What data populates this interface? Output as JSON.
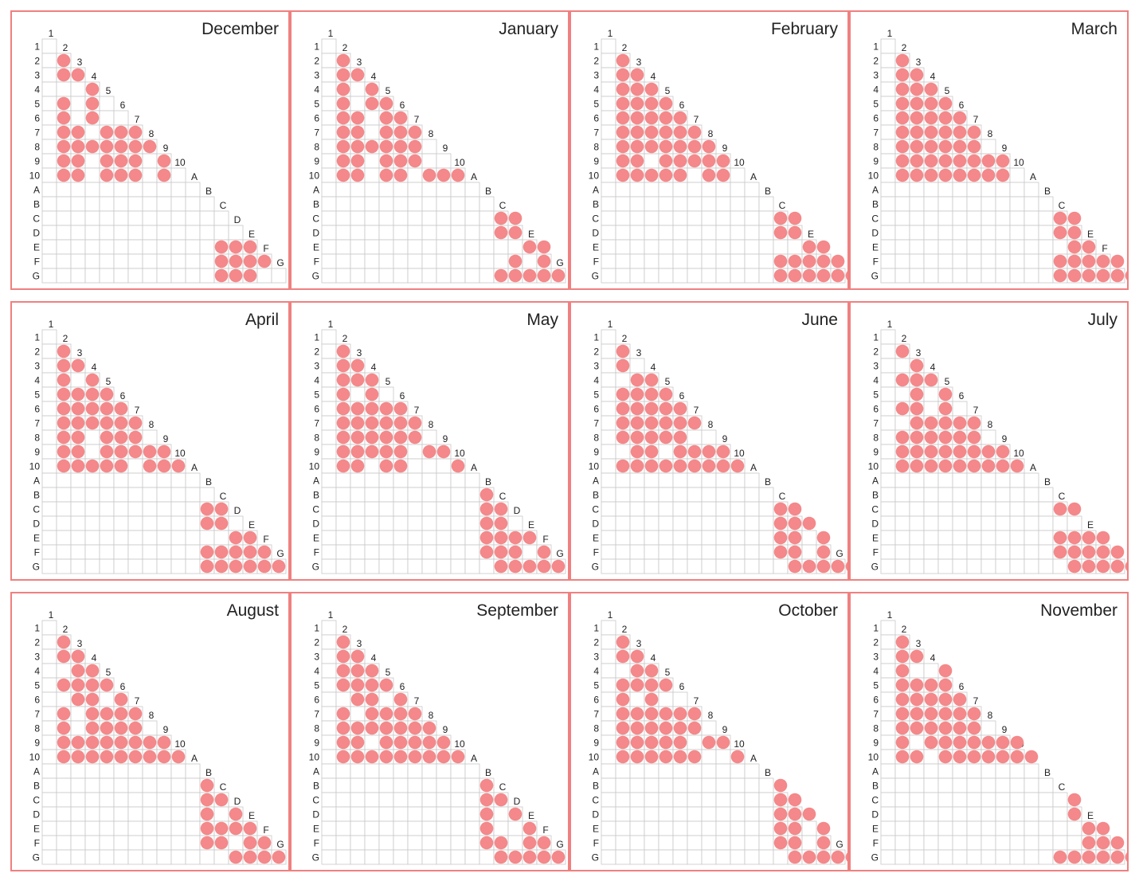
{
  "chart_data": {
    "type": "heatmap",
    "labels": [
      "1",
      "2",
      "3",
      "4",
      "5",
      "6",
      "7",
      "8",
      "9",
      "10",
      "A",
      "B",
      "C",
      "D",
      "E",
      "F",
      "G"
    ],
    "marker_color": "#f4888a",
    "border_color": "#f08080",
    "grid_color": "#c8c8c8",
    "panels": [
      {
        "title": "December",
        "rows": [
          [],
          [
            1
          ],
          [
            1,
            2
          ],
          [
            3
          ],
          [
            1,
            3
          ],
          [
            1,
            3
          ],
          [
            1,
            2,
            4,
            5,
            6
          ],
          [
            1,
            2,
            3,
            4,
            5,
            6,
            7
          ],
          [
            1,
            2,
            4,
            5,
            6,
            8
          ],
          [
            1,
            2,
            4,
            5,
            6,
            8
          ],
          [],
          [],
          [],
          [],
          [
            12,
            13,
            14
          ],
          [
            12,
            13,
            14,
            15
          ],
          [
            12,
            13,
            14
          ]
        ]
      },
      {
        "title": "January",
        "rows": [
          [],
          [
            1
          ],
          [
            1,
            2
          ],
          [
            1,
            3
          ],
          [
            1,
            3,
            4
          ],
          [
            1,
            2,
            4,
            5
          ],
          [
            1,
            2,
            4,
            5,
            6
          ],
          [
            1,
            2,
            3,
            4,
            5,
            6
          ],
          [
            1,
            2,
            4,
            5,
            6
          ],
          [
            1,
            2,
            4,
            5,
            7,
            8,
            9
          ],
          [],
          [],
          [
            12,
            13
          ],
          [
            12,
            13
          ],
          [
            14,
            15
          ],
          [
            13,
            15
          ],
          [
            12,
            13,
            14,
            15,
            16
          ]
        ]
      },
      {
        "title": "February",
        "rows": [
          [],
          [
            1
          ],
          [
            1,
            2
          ],
          [
            1,
            2,
            3
          ],
          [
            1,
            2,
            3,
            4
          ],
          [
            1,
            2,
            3,
            4,
            5
          ],
          [
            1,
            2,
            3,
            4,
            5,
            6
          ],
          [
            1,
            2,
            3,
            4,
            5,
            6,
            7
          ],
          [
            1,
            2,
            4,
            5,
            6,
            7,
            8
          ],
          [
            1,
            2,
            3,
            4,
            5,
            7,
            8
          ],
          [],
          [],
          [
            12,
            13
          ],
          [
            12,
            13
          ],
          [
            14,
            15
          ],
          [
            12,
            13,
            14,
            15,
            16
          ],
          [
            12,
            13,
            14,
            15,
            16,
            17
          ]
        ]
      },
      {
        "title": "March",
        "rows": [
          [],
          [
            1
          ],
          [
            1,
            2
          ],
          [
            1,
            2,
            3
          ],
          [
            1,
            2,
            3,
            4
          ],
          [
            1,
            2,
            3,
            4,
            5
          ],
          [
            1,
            2,
            3,
            4,
            5,
            6
          ],
          [
            1,
            2,
            3,
            4,
            5,
            6
          ],
          [
            1,
            2,
            3,
            4,
            5,
            6,
            7,
            8
          ],
          [
            1,
            2,
            3,
            4,
            5,
            6,
            7,
            8
          ],
          [],
          [],
          [
            12,
            13
          ],
          [
            12,
            13
          ],
          [
            13,
            14
          ],
          [
            12,
            13,
            14,
            15,
            16
          ],
          [
            12,
            13,
            14,
            15,
            16,
            17
          ]
        ]
      },
      {
        "title": "April",
        "rows": [
          [],
          [
            1
          ],
          [
            1,
            2
          ],
          [
            1,
            3
          ],
          [
            1,
            2,
            3,
            4
          ],
          [
            1,
            2,
            3,
            4,
            5
          ],
          [
            1,
            2,
            3,
            4,
            5,
            6
          ],
          [
            1,
            2,
            4,
            5,
            6
          ],
          [
            1,
            2,
            4,
            5,
            6,
            7,
            8
          ],
          [
            1,
            2,
            3,
            4,
            5,
            7,
            8,
            9
          ],
          [],
          [],
          [
            11,
            12
          ],
          [
            11,
            12
          ],
          [
            13,
            14
          ],
          [
            11,
            12,
            13,
            14,
            15
          ],
          [
            11,
            12,
            13,
            14,
            15,
            16
          ]
        ]
      },
      {
        "title": "May",
        "rows": [
          [],
          [
            1
          ],
          [
            1,
            2
          ],
          [
            1,
            2,
            3
          ],
          [
            1,
            3
          ],
          [
            1,
            2,
            3,
            4,
            5
          ],
          [
            1,
            2,
            3,
            4,
            5,
            6
          ],
          [
            1,
            2,
            3,
            4,
            5,
            6
          ],
          [
            1,
            2,
            3,
            4,
            5,
            7,
            8
          ],
          [
            1,
            2,
            4,
            5,
            9
          ],
          [],
          [
            11
          ],
          [
            11,
            12
          ],
          [
            11,
            12
          ],
          [
            11,
            12,
            13,
            14
          ],
          [
            11,
            12,
            13,
            15
          ],
          [
            12,
            13,
            14,
            15,
            16
          ]
        ]
      },
      {
        "title": "June",
        "rows": [
          [],
          [
            1
          ],
          [
            1
          ],
          [
            2,
            3
          ],
          [
            1,
            2,
            3,
            4
          ],
          [
            1,
            2,
            3,
            4,
            5
          ],
          [
            1,
            2,
            3,
            4,
            5,
            6
          ],
          [
            1,
            2,
            3,
            4,
            5
          ],
          [
            2,
            3,
            5,
            6,
            7,
            8
          ],
          [
            1,
            2,
            3,
            4,
            5,
            6,
            7,
            8,
            9
          ],
          [],
          [],
          [
            12,
            13
          ],
          [
            12,
            13,
            14
          ],
          [
            12,
            13,
            15
          ],
          [
            12,
            13,
            15
          ],
          [
            13,
            14,
            15,
            16,
            17
          ]
        ]
      },
      {
        "title": "July",
        "rows": [
          [],
          [
            1
          ],
          [
            2
          ],
          [
            1,
            2,
            3
          ],
          [
            2,
            4
          ],
          [
            1,
            2,
            4
          ],
          [
            2,
            3,
            4,
            5,
            6
          ],
          [
            1,
            2,
            3,
            4,
            5,
            6
          ],
          [
            1,
            2,
            3,
            4,
            5,
            6,
            7,
            8
          ],
          [
            1,
            2,
            3,
            4,
            5,
            6,
            7,
            8,
            9
          ],
          [],
          [],
          [
            12,
            13
          ],
          [],
          [
            12,
            13,
            14,
            15
          ],
          [
            12,
            13,
            14,
            15,
            16
          ],
          [
            13,
            14,
            15,
            16,
            17
          ]
        ]
      },
      {
        "title": "August",
        "rows": [
          [],
          [
            1
          ],
          [
            1,
            2
          ],
          [
            2,
            3
          ],
          [
            1,
            2,
            3,
            4
          ],
          [
            2,
            3,
            5
          ],
          [
            1,
            3,
            4,
            5,
            6
          ],
          [
            1,
            3,
            4,
            5,
            6
          ],
          [
            1,
            2,
            3,
            4,
            5,
            6,
            7,
            8
          ],
          [
            1,
            2,
            3,
            4,
            5,
            6,
            7,
            8,
            9
          ],
          [],
          [
            11
          ],
          [
            11,
            12
          ],
          [
            11,
            13
          ],
          [
            11,
            12,
            13,
            14
          ],
          [
            11,
            12,
            14,
            15
          ],
          [
            13,
            14,
            15,
            16
          ]
        ]
      },
      {
        "title": "September",
        "rows": [
          [],
          [
            1
          ],
          [
            1,
            2
          ],
          [
            1,
            2,
            3
          ],
          [
            1,
            2,
            3,
            4
          ],
          [
            2,
            3,
            5
          ],
          [
            1,
            3,
            4,
            5,
            6
          ],
          [
            1,
            2,
            3,
            4,
            5,
            6,
            7
          ],
          [
            1,
            2,
            4,
            5,
            6,
            7,
            8
          ],
          [
            1,
            2,
            3,
            4,
            5,
            6,
            7,
            8,
            9
          ],
          [],
          [
            11
          ],
          [
            11,
            12
          ],
          [
            11,
            13
          ],
          [
            11,
            14
          ],
          [
            11,
            12,
            14,
            15
          ],
          [
            12,
            13,
            14,
            15,
            16
          ]
        ]
      },
      {
        "title": "October",
        "rows": [
          [],
          [
            1
          ],
          [
            1,
            2
          ],
          [
            2,
            3
          ],
          [
            1,
            2,
            3,
            4
          ],
          [
            1,
            3
          ],
          [
            1,
            2,
            3,
            4,
            5,
            6
          ],
          [
            1,
            2,
            3,
            4,
            5,
            6
          ],
          [
            1,
            2,
            3,
            4,
            5,
            7,
            8
          ],
          [
            1,
            2,
            3,
            4,
            5,
            6,
            9
          ],
          [],
          [
            12
          ],
          [
            12,
            13
          ],
          [
            12,
            13,
            14
          ],
          [
            12,
            13,
            15
          ],
          [
            12,
            13,
            15
          ],
          [
            13,
            14,
            15,
            16,
            17
          ]
        ]
      },
      {
        "title": "November",
        "rows": [
          [],
          [
            1
          ],
          [
            1,
            2
          ],
          [
            1,
            4
          ],
          [
            1,
            2,
            3,
            4
          ],
          [
            1,
            2,
            3,
            4,
            5
          ],
          [
            1,
            2,
            3,
            4,
            5,
            6
          ],
          [
            1,
            2,
            3,
            4,
            5,
            6
          ],
          [
            1,
            3,
            4,
            5,
            6,
            7,
            8,
            9
          ],
          [
            1,
            2,
            4,
            5,
            6,
            7,
            8,
            9,
            10
          ],
          [],
          [],
          [
            13
          ],
          [
            13
          ],
          [
            14,
            15
          ],
          [
            14,
            15,
            16
          ],
          [
            12,
            13,
            14,
            15,
            16,
            17
          ]
        ]
      }
    ]
  }
}
